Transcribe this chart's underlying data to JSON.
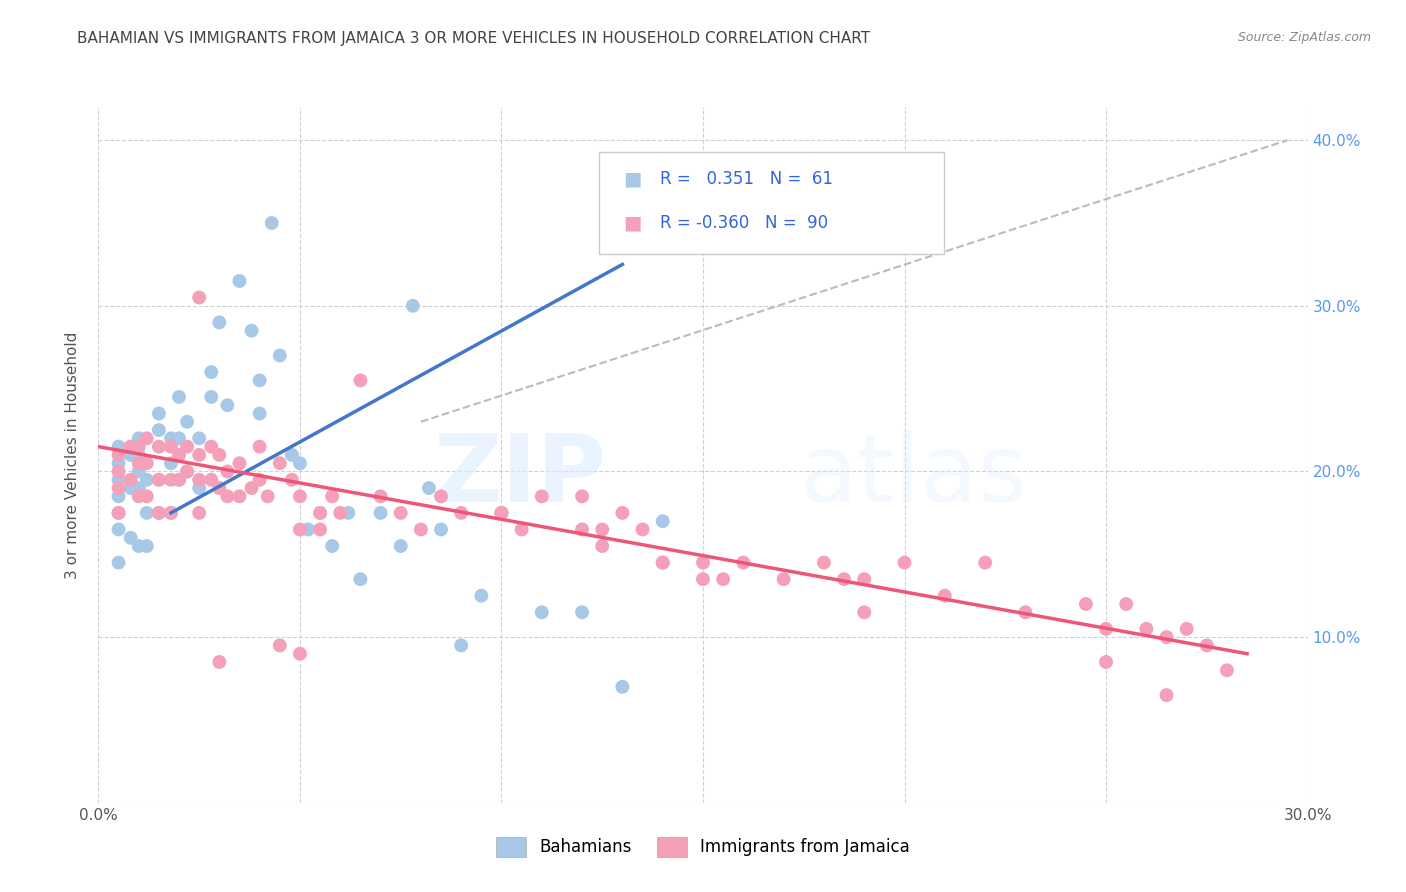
{
  "title": "BAHAMIAN VS IMMIGRANTS FROM JAMAICA 3 OR MORE VEHICLES IN HOUSEHOLD CORRELATION CHART",
  "source": "Source: ZipAtlas.com",
  "ylabel": "3 or more Vehicles in Household",
  "x_min": 0.0,
  "x_max": 0.3,
  "y_min": 0.0,
  "y_max": 0.42,
  "x_ticks": [
    0.0,
    0.05,
    0.1,
    0.15,
    0.2,
    0.25,
    0.3
  ],
  "x_tick_labels": [
    "0.0%",
    "",
    "",
    "",
    "",
    "",
    "30.0%"
  ],
  "y_ticks": [
    0.0,
    0.1,
    0.2,
    0.3,
    0.4
  ],
  "y_tick_labels_right": [
    "",
    "10.0%",
    "20.0%",
    "30.0%",
    "40.0%"
  ],
  "blue_color": "#a8c8e8",
  "pink_color": "#f4a0b8",
  "blue_line_color": "#4477cc",
  "pink_line_color": "#ee5577",
  "dash_line_color": "#bbbbbb",
  "watermark_zip": "ZIP",
  "watermark_atlas": "atlas",
  "blue_scatter_x": [
    0.005,
    0.005,
    0.005,
    0.005,
    0.005,
    0.005,
    0.005,
    0.008,
    0.008,
    0.008,
    0.01,
    0.01,
    0.01,
    0.01,
    0.01,
    0.012,
    0.012,
    0.012,
    0.015,
    0.015,
    0.015,
    0.015,
    0.018,
    0.018,
    0.018,
    0.02,
    0.02,
    0.02,
    0.022,
    0.022,
    0.025,
    0.025,
    0.028,
    0.028,
    0.03,
    0.032,
    0.035,
    0.038,
    0.04,
    0.04,
    0.043,
    0.045,
    0.048,
    0.05,
    0.052,
    0.055,
    0.058,
    0.062,
    0.065,
    0.07,
    0.075,
    0.078,
    0.082,
    0.085,
    0.09,
    0.095,
    0.1,
    0.11,
    0.12,
    0.13,
    0.14
  ],
  "blue_scatter_y": [
    0.215,
    0.205,
    0.195,
    0.185,
    0.175,
    0.165,
    0.145,
    0.21,
    0.19,
    0.16,
    0.22,
    0.21,
    0.2,
    0.19,
    0.155,
    0.195,
    0.175,
    0.155,
    0.235,
    0.225,
    0.195,
    0.175,
    0.22,
    0.205,
    0.175,
    0.245,
    0.22,
    0.195,
    0.23,
    0.2,
    0.22,
    0.19,
    0.26,
    0.245,
    0.29,
    0.24,
    0.315,
    0.285,
    0.255,
    0.235,
    0.35,
    0.27,
    0.21,
    0.205,
    0.165,
    0.175,
    0.155,
    0.175,
    0.135,
    0.175,
    0.155,
    0.3,
    0.19,
    0.165,
    0.095,
    0.125,
    0.175,
    0.115,
    0.115,
    0.07,
    0.17
  ],
  "pink_scatter_x": [
    0.005,
    0.005,
    0.005,
    0.005,
    0.008,
    0.008,
    0.01,
    0.01,
    0.01,
    0.012,
    0.012,
    0.012,
    0.015,
    0.015,
    0.015,
    0.018,
    0.018,
    0.018,
    0.02,
    0.02,
    0.022,
    0.022,
    0.025,
    0.025,
    0.025,
    0.028,
    0.028,
    0.03,
    0.03,
    0.032,
    0.032,
    0.035,
    0.035,
    0.038,
    0.04,
    0.04,
    0.042,
    0.045,
    0.048,
    0.05,
    0.05,
    0.055,
    0.055,
    0.058,
    0.06,
    0.065,
    0.07,
    0.075,
    0.08,
    0.085,
    0.09,
    0.1,
    0.105,
    0.11,
    0.12,
    0.125,
    0.13,
    0.135,
    0.14,
    0.15,
    0.155,
    0.16,
    0.17,
    0.18,
    0.185,
    0.19,
    0.2,
    0.21,
    0.22,
    0.23,
    0.245,
    0.25,
    0.255,
    0.26,
    0.265,
    0.27,
    0.275,
    0.28,
    0.025,
    0.03,
    0.045,
    0.05,
    0.1,
    0.12,
    0.125,
    0.14,
    0.15,
    0.19,
    0.25,
    0.265
  ],
  "pink_scatter_y": [
    0.21,
    0.2,
    0.19,
    0.175,
    0.215,
    0.195,
    0.215,
    0.205,
    0.185,
    0.22,
    0.205,
    0.185,
    0.215,
    0.195,
    0.175,
    0.215,
    0.195,
    0.175,
    0.21,
    0.195,
    0.215,
    0.2,
    0.21,
    0.195,
    0.175,
    0.215,
    0.195,
    0.21,
    0.19,
    0.2,
    0.185,
    0.205,
    0.185,
    0.19,
    0.215,
    0.195,
    0.185,
    0.205,
    0.195,
    0.185,
    0.165,
    0.175,
    0.165,
    0.185,
    0.175,
    0.255,
    0.185,
    0.175,
    0.165,
    0.185,
    0.175,
    0.175,
    0.165,
    0.185,
    0.185,
    0.165,
    0.175,
    0.165,
    0.145,
    0.145,
    0.135,
    0.145,
    0.135,
    0.145,
    0.135,
    0.135,
    0.145,
    0.125,
    0.145,
    0.115,
    0.12,
    0.105,
    0.12,
    0.105,
    0.1,
    0.105,
    0.095,
    0.08,
    0.305,
    0.085,
    0.095,
    0.09,
    0.175,
    0.165,
    0.155,
    0.145,
    0.135,
    0.115,
    0.085,
    0.065
  ],
  "blue_line_x": [
    0.018,
    0.13
  ],
  "blue_line_y": [
    0.175,
    0.325
  ],
  "pink_line_x": [
    0.0,
    0.285
  ],
  "pink_line_y": [
    0.215,
    0.09
  ],
  "dash_line_x": [
    0.08,
    0.295
  ],
  "dash_line_y": [
    0.23,
    0.4
  ]
}
